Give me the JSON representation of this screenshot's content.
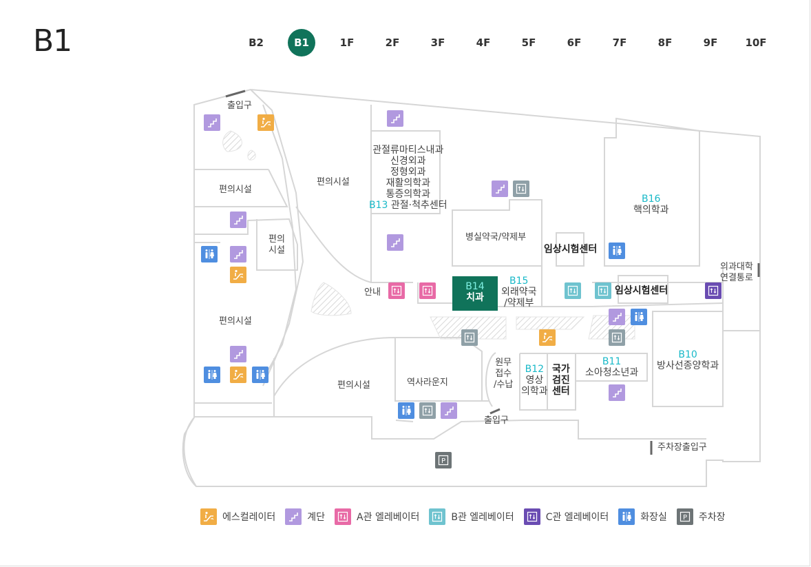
{
  "floor": {
    "title": "B1"
  },
  "floor_tabs": [
    {
      "label": "B2",
      "active": false
    },
    {
      "label": "B1",
      "active": true
    },
    {
      "label": "1F",
      "active": false
    },
    {
      "label": "2F",
      "active": false
    },
    {
      "label": "3F",
      "active": false
    },
    {
      "label": "4F",
      "active": false
    },
    {
      "label": "5F",
      "active": false
    },
    {
      "label": "6F",
      "active": false
    },
    {
      "label": "7F",
      "active": false
    },
    {
      "label": "8F",
      "active": false
    },
    {
      "label": "9F",
      "active": false
    },
    {
      "label": "10F",
      "active": false
    }
  ],
  "labels": {
    "entrance_top": "출입구",
    "entrance_bottom": "출입구",
    "parking_entrance": "주차장출입구",
    "conv_1": "편의시설",
    "conv_2_line1": "편의",
    "conv_2_line2": "시설",
    "conv_3": "편의시설",
    "conv_4": "편의시설",
    "conv_5": "편의시설",
    "rheum_1": "관절류마티스내과",
    "rheum_2": "신경외과",
    "rheum_3": "정형외과",
    "rheum_4": "재활의학과",
    "rheum_5": "통증의학과",
    "rheum_code": "B13",
    "rheum_6": "관절·척추센터",
    "pharmacy": "병실약국/약제부",
    "clinical_1": "임상시험센터",
    "clinical_2": "임상시험센터",
    "nuclear_code": "B16",
    "nuclear": "핵의학과",
    "info": "안내",
    "dental_code": "B14",
    "dental": "치과",
    "outpharm_code": "B15",
    "outpharm_1": "외래약국",
    "outpharm_2": "/약제부",
    "medcollege_1": "의과대학",
    "medcollege_2": "연결통로",
    "history": "역사라운지",
    "admin_1": "원무",
    "admin_2": "접수",
    "admin_3": "/수납",
    "radiology_code": "B12",
    "radiology_1": "영상",
    "radiology_2": "의학과",
    "national_1": "국가",
    "national_2": "검진",
    "national_3": "센터",
    "peds_code": "B11",
    "peds": "소아청소년과",
    "radonc_code": "B10",
    "radonc": "방사선종양학과",
    "parking_icon": "P"
  },
  "legend": [
    {
      "icon": "escalator-icon",
      "label": "에스컬레이터",
      "color": "#f1ad45"
    },
    {
      "icon": "stairs-icon",
      "label": "계단",
      "color": "#b199df"
    },
    {
      "icon": "elevator-a-icon",
      "label": "A관 엘레베이터",
      "color": "#e86aa6"
    },
    {
      "icon": "elevator-b-icon",
      "label": "B관 엘레베이터",
      "color": "#6fc3cf"
    },
    {
      "icon": "elevator-c-icon",
      "label": "C관 엘레베이터",
      "color": "#6a4cb2"
    },
    {
      "icon": "restroom-icon",
      "label": "화장실",
      "color": "#4f8ee0"
    },
    {
      "icon": "parking-icon",
      "label": "주차장",
      "color": "#6d7476"
    }
  ],
  "colors": {
    "active_tab": "#10735a",
    "department_code": "#19b9c8",
    "wall": "#d6d6d6"
  }
}
